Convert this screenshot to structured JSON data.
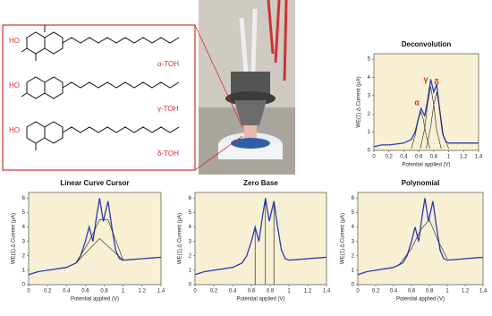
{
  "structures": [
    {
      "group": "HO",
      "label": "α-TOH"
    },
    {
      "group": "HO",
      "label": "γ-TOH"
    },
    {
      "group": "HO",
      "label": "δ-TOH"
    }
  ],
  "chart_data": [
    {
      "type": "line",
      "title": "Deconvolution",
      "xlabel": "Potential applied (V)",
      "ylabel": "WE(1).∆.Current (µA)",
      "xlim": [
        0,
        1.4
      ],
      "xticks": [
        0,
        0.2,
        0.4,
        0.6,
        0.8,
        1,
        1.2,
        1.4
      ],
      "ylim": [
        0,
        5.3
      ],
      "yticks": [
        0,
        1,
        2,
        3,
        4,
        5
      ],
      "annotations": [
        "α",
        "γ",
        "δ"
      ],
      "annotation_color": "#d0312d",
      "x": [
        0,
        0.1,
        0.2,
        0.3,
        0.4,
        0.5,
        0.55,
        0.6,
        0.63,
        0.68,
        0.72,
        0.76,
        0.8,
        0.84,
        0.88,
        0.92,
        0.96,
        1.0,
        1.1,
        1.2,
        1.3,
        1.4
      ],
      "series": [
        {
          "color": "#2a3bb5",
          "values": [
            0.2,
            0.3,
            0.3,
            0.35,
            0.4,
            0.6,
            1.0,
            1.8,
            2.3,
            1.9,
            2.8,
            3.9,
            3.2,
            3.6,
            2.2,
            0.9,
            0.5,
            0.4,
            0.4,
            0.4,
            0.4,
            0.4
          ]
        },
        {
          "color": "#222222",
          "x": [
            0.5,
            0.55,
            0.6,
            0.63,
            0.66,
            0.7,
            0.75
          ],
          "values": [
            0.1,
            0.8,
            1.8,
            2.1,
            1.7,
            0.8,
            0.1
          ]
        },
        {
          "color": "#222222",
          "x": [
            0.62,
            0.68,
            0.72,
            0.76,
            0.8,
            0.84,
            0.9
          ],
          "values": [
            0.1,
            1.2,
            2.6,
            3.5,
            2.5,
            1.1,
            0.1
          ]
        },
        {
          "color": "#222222",
          "x": [
            0.7,
            0.76,
            0.8,
            0.84,
            0.88,
            0.93,
            1.0
          ],
          "values": [
            0.1,
            1.3,
            2.5,
            3.2,
            2.3,
            0.8,
            0.1
          ]
        }
      ]
    },
    {
      "type": "line",
      "title": "Linear Curve Cursor",
      "xlabel": "Potential applied (V)",
      "ylabel": "WE(1).∆.Current (µA)",
      "xlim": [
        0,
        1.4
      ],
      "xticks": [
        0,
        0.2,
        0.4,
        0.6,
        0.8,
        1,
        1.2,
        1.4
      ],
      "ylim": [
        0,
        6.4
      ],
      "yticks": [
        0,
        1,
        2,
        3,
        4,
        5,
        6
      ],
      "x": [
        0,
        0.1,
        0.2,
        0.3,
        0.4,
        0.5,
        0.55,
        0.6,
        0.64,
        0.68,
        0.72,
        0.75,
        0.79,
        0.84,
        0.88,
        0.92,
        0.96,
        1.0,
        1.1,
        1.2,
        1.3,
        1.4
      ],
      "series": [
        {
          "color": "#2a3bb5",
          "values": [
            0.7,
            0.9,
            1.0,
            1.1,
            1.2,
            1.5,
            2.0,
            3.0,
            4.0,
            3.0,
            4.8,
            6.0,
            4.4,
            5.8,
            4.0,
            2.4,
            1.8,
            1.7,
            1.75,
            1.8,
            1.85,
            1.9
          ]
        },
        {
          "color": "#222222",
          "x": [
            0.5,
            0.64,
            0.75,
            0.84,
            1.0
          ],
          "values": [
            1.5,
            3.0,
            4.5,
            4.5,
            1.7
          ]
        },
        {
          "color": "#222222",
          "x": [
            0.5,
            0.75,
            1.0
          ],
          "values": [
            1.5,
            3.2,
            1.7
          ]
        }
      ]
    },
    {
      "type": "line",
      "title": "Zero Base",
      "xlabel": "Potential applied (V)",
      "ylabel": "WE(1).∆.Current (µA)",
      "xlim": [
        0,
        1.4
      ],
      "xticks": [
        0,
        0.2,
        0.4,
        0.6,
        0.8,
        1,
        1.2,
        1.4
      ],
      "ylim": [
        0,
        6.4
      ],
      "yticks": [
        0,
        1,
        2,
        3,
        4,
        5,
        6
      ],
      "markers": [
        0.64,
        0.75,
        0.84
      ],
      "x": [
        0,
        0.1,
        0.2,
        0.3,
        0.4,
        0.5,
        0.55,
        0.6,
        0.64,
        0.68,
        0.72,
        0.75,
        0.79,
        0.84,
        0.88,
        0.92,
        0.96,
        1.0,
        1.1,
        1.2,
        1.3,
        1.4
      ],
      "series": [
        {
          "color": "#2a3bb5",
          "values": [
            0.7,
            0.9,
            1.0,
            1.1,
            1.2,
            1.5,
            2.0,
            3.0,
            4.0,
            3.0,
            4.8,
            6.0,
            4.4,
            5.8,
            4.0,
            2.4,
            1.8,
            1.7,
            1.75,
            1.8,
            1.85,
            1.9
          ]
        }
      ]
    },
    {
      "type": "line",
      "title": "Polynomial",
      "xlabel": "Potential applied (V)",
      "ylabel": "WE(1).∆.Current (µA)",
      "xlim": [
        0,
        1.4
      ],
      "xticks": [
        0,
        0.2,
        0.4,
        0.6,
        0.8,
        1,
        1.2,
        1.4
      ],
      "ylim": [
        0,
        6.4
      ],
      "yticks": [
        0,
        1,
        2,
        3,
        4,
        5,
        6
      ],
      "x": [
        0,
        0.1,
        0.2,
        0.3,
        0.4,
        0.5,
        0.55,
        0.6,
        0.64,
        0.68,
        0.72,
        0.75,
        0.79,
        0.84,
        0.88,
        0.92,
        0.96,
        1.0,
        1.1,
        1.2,
        1.3,
        1.4
      ],
      "series": [
        {
          "color": "#2a3bb5",
          "values": [
            0.7,
            0.9,
            1.0,
            1.1,
            1.2,
            1.5,
            2.0,
            3.0,
            4.0,
            3.0,
            4.8,
            6.0,
            4.4,
            5.8,
            4.0,
            2.4,
            1.8,
            1.7,
            1.75,
            1.8,
            1.85,
            1.9
          ]
        },
        {
          "color": "#222222",
          "x": [
            0.45,
            0.6,
            0.7,
            0.8,
            0.9,
            1.0
          ],
          "values": [
            1.3,
            2.5,
            3.8,
            4.5,
            3.0,
            1.8
          ]
        }
      ]
    }
  ]
}
